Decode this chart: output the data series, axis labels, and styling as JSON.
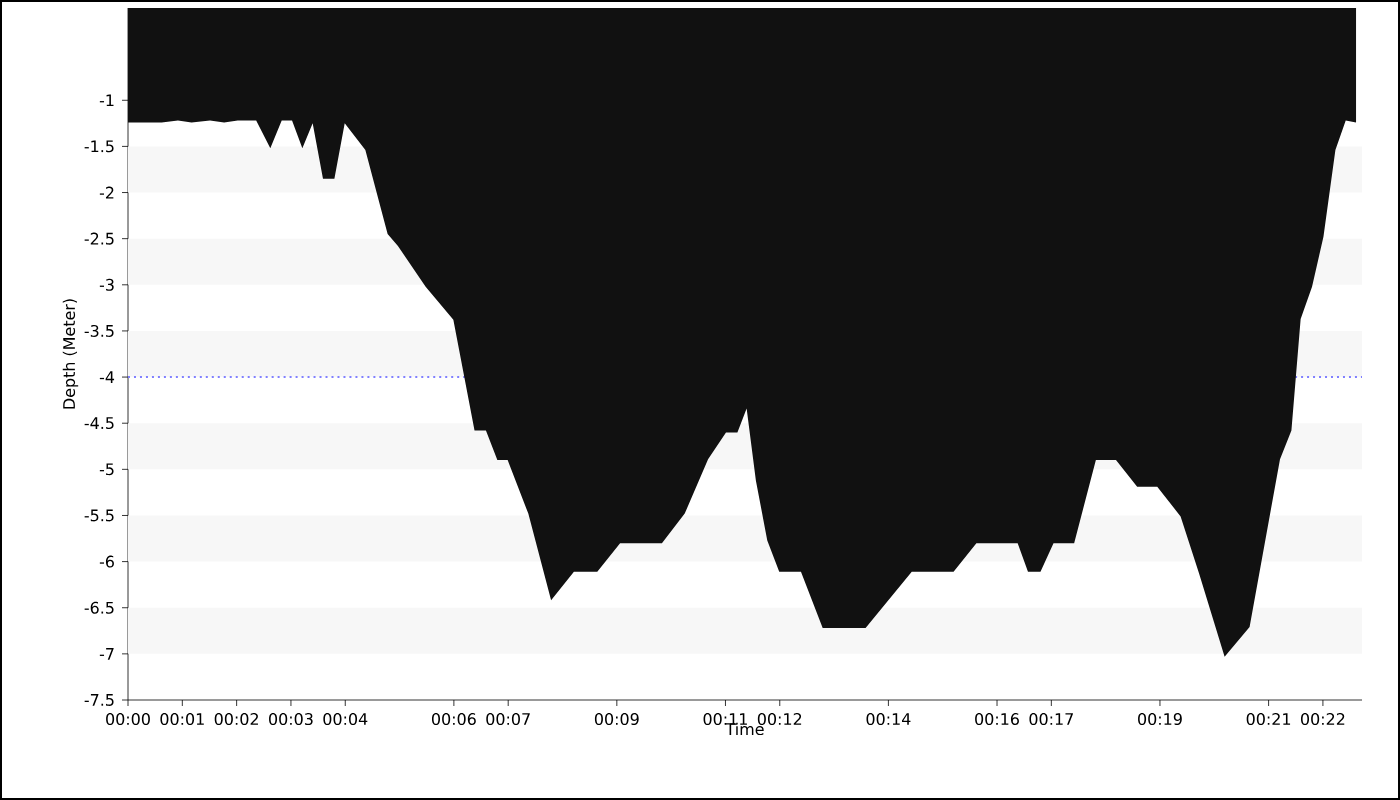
{
  "chart_data": {
    "type": "area",
    "xlabel": "Time",
    "ylabel": "Depth (Meter)",
    "x": [
      0,
      0.62,
      0.92,
      1.17,
      1.51,
      1.77,
      2.02,
      2.36,
      2.62,
      2.83,
      3.02,
      3.21,
      3.4,
      3.59,
      3.8,
      3.99,
      4.37,
      4.78,
      4.97,
      5.48,
      5.99,
      6.38,
      6.59,
      6.8,
      6.99,
      7.37,
      7.79,
      8.21,
      8.64,
      9.06,
      9.83,
      10.25,
      10.68,
      11.01,
      11.22,
      11.39,
      11.56,
      11.77,
      11.99,
      12.39,
      12.79,
      13.58,
      14.43,
      15.2,
      15.62,
      16.38,
      16.57,
      16.8,
      17.04,
      17.42,
      17.82,
      18.19,
      18.58,
      18.95,
      19.38,
      19.72,
      20.19,
      20.65,
      21.21,
      21.42,
      21.59,
      21.8,
      22.01,
      22.23,
      22.42,
      22.61
    ],
    "series": [
      {
        "color": "#111111",
        "values": [
          -1.24,
          -1.24,
          -1.22,
          -1.24,
          -1.22,
          -1.24,
          -1.22,
          -1.22,
          -1.52,
          -1.22,
          -1.22,
          -1.52,
          -1.25,
          -1.85,
          -1.85,
          -1.25,
          -1.54,
          -2.45,
          -2.58,
          -3.02,
          -3.38,
          -4.58,
          -4.58,
          -4.9,
          -4.9,
          -5.48,
          -6.42,
          -6.11,
          -6.11,
          -5.8,
          -5.8,
          -5.48,
          -4.89,
          -4.6,
          -4.6,
          -4.34,
          -5.12,
          -5.77,
          -6.11,
          -6.11,
          -6.72,
          -6.72,
          -6.11,
          -6.11,
          -5.8,
          -5.8,
          -6.11,
          -6.11,
          -5.8,
          -5.8,
          -4.9,
          -4.9,
          -5.19,
          -5.19,
          -5.51,
          -6.13,
          -7.03,
          -6.71,
          -4.89,
          -4.58,
          -3.37,
          -3.02,
          -2.48,
          -1.54,
          -1.22,
          -1.24
        ]
      }
    ],
    "xlim": [
      0,
      22.72
    ],
    "ylim": [
      -7.5,
      0
    ],
    "xticks": [
      {
        "value": 0,
        "label": "00:00"
      },
      {
        "value": 1,
        "label": "00:01"
      },
      {
        "value": 2,
        "label": "00:02"
      },
      {
        "value": 3,
        "label": "00:03"
      },
      {
        "value": 4,
        "label": "00:04"
      },
      {
        "value": 6,
        "label": "00:06"
      },
      {
        "value": 7,
        "label": "00:07"
      },
      {
        "value": 9,
        "label": "00:09"
      },
      {
        "value": 11,
        "label": "00:11"
      },
      {
        "value": 12,
        "label": "00:12"
      },
      {
        "value": 14,
        "label": "00:14"
      },
      {
        "value": 16,
        "label": "00:16"
      },
      {
        "value": 17,
        "label": "00:17"
      },
      {
        "value": 19,
        "label": "00:19"
      },
      {
        "value": 21,
        "label": "00:21"
      },
      {
        "value": 22,
        "label": "00:22"
      }
    ],
    "yticks": [
      -1,
      -1.5,
      -2,
      -2.5,
      -3,
      -3.5,
      -4,
      -4.5,
      -5,
      -5.5,
      -6,
      -6.5,
      -7,
      -7.5
    ],
    "ref_lines": [
      {
        "axis": "y",
        "value": -4,
        "color": "#8080ff",
        "line_style": "dotted"
      }
    ],
    "bands": [
      {
        "axis": "y",
        "from": -1.5,
        "to": -2,
        "color": "#f7f7f7"
      },
      {
        "axis": "y",
        "from": -2.5,
        "to": -3,
        "color": "#f7f7f7"
      },
      {
        "axis": "y",
        "from": -3.5,
        "to": -4,
        "color": "#f7f7f7"
      },
      {
        "axis": "y",
        "from": -4.5,
        "to": -5,
        "color": "#f7f7f7"
      },
      {
        "axis": "y",
        "from": -5.5,
        "to": -6,
        "color": "#f7f7f7"
      },
      {
        "axis": "y",
        "from": -6.5,
        "to": -7,
        "color": "#f7f7f7"
      }
    ]
  }
}
